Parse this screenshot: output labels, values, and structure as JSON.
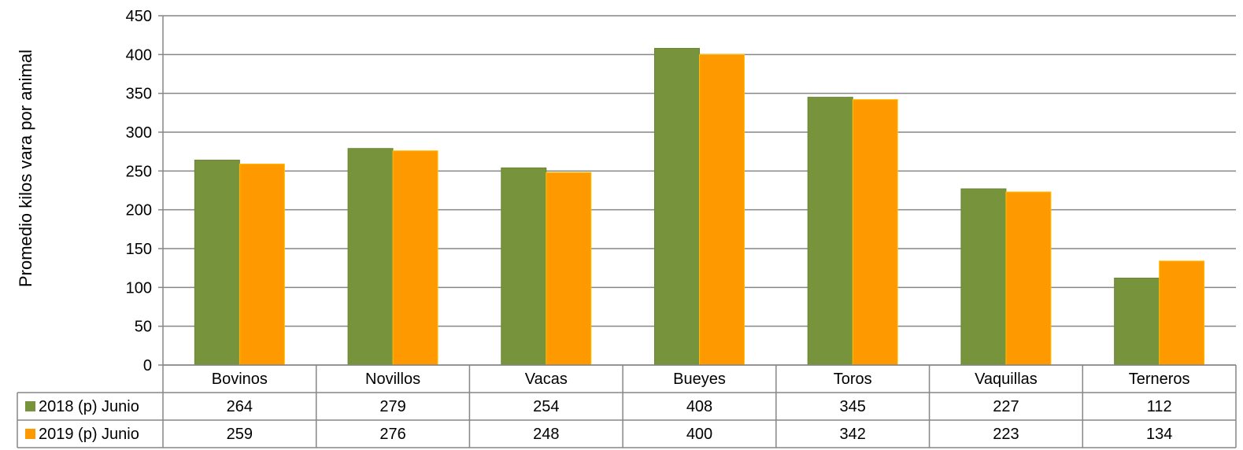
{
  "chart_data": {
    "type": "bar",
    "ylabel": "Promedio kilos vara por animal",
    "ylim": [
      0,
      450
    ],
    "yticks": [
      0,
      50,
      100,
      150,
      200,
      250,
      300,
      350,
      400,
      450
    ],
    "grid": true,
    "legend": "data-table-left",
    "categories": [
      "Bovinos",
      "Novillos",
      "Vacas",
      "Bueyes",
      "Toros",
      "Vaquillas",
      "Terneros"
    ],
    "series": [
      {
        "name": "2018 (p) Junio",
        "color": "#77933c",
        "values": [
          264,
          279,
          254,
          408,
          345,
          227,
          112
        ]
      },
      {
        "name": "2019 (p) Junio",
        "color": "#ff9900",
        "values": [
          259,
          276,
          248,
          400,
          342,
          223,
          134
        ]
      }
    ]
  }
}
